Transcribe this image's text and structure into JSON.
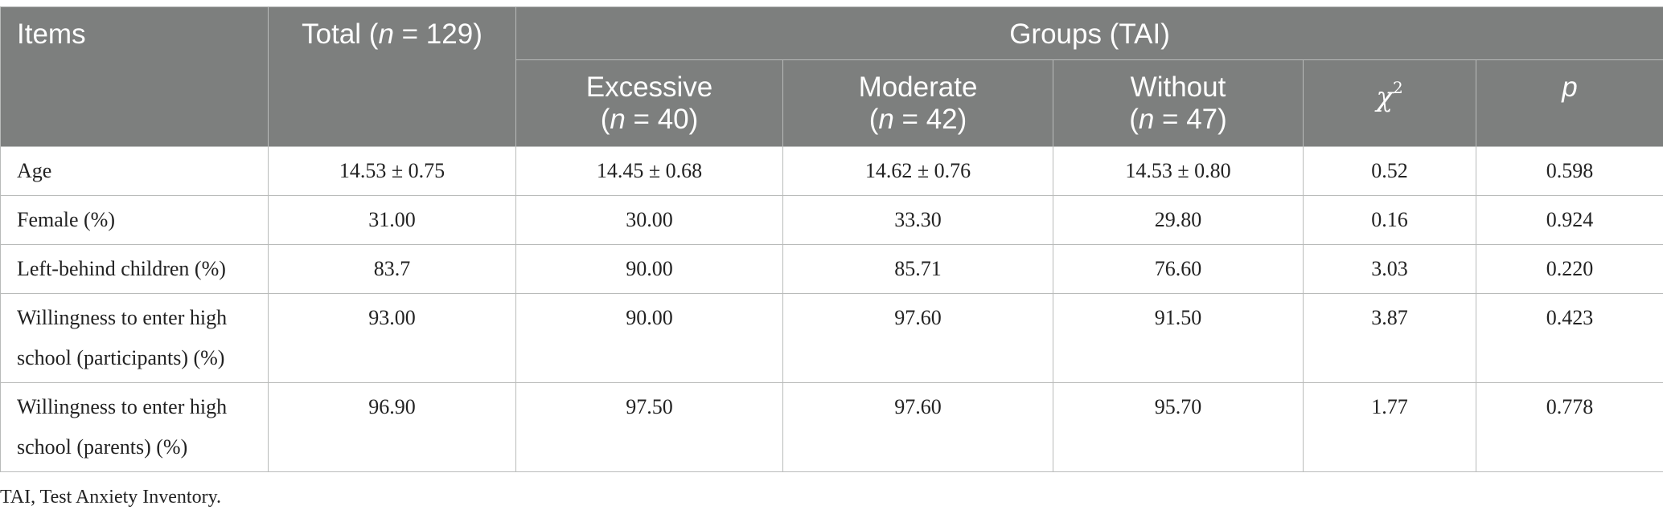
{
  "header": {
    "items": "Items",
    "total_prefix": "Total (",
    "total_n": "n",
    "total_suffix": " = 129)",
    "groups": "Groups (TAI)",
    "groups_cols": [
      {
        "line1": "Excessive",
        "n_open": "(",
        "n": "n",
        "n_rest": " = 40)"
      },
      {
        "line1": "Moderate",
        "n_open": "(",
        "n": "n",
        "n_rest": " = 42)"
      },
      {
        "line1": "Without",
        "n_open": "(",
        "n": "n",
        "n_rest": " = 47)"
      }
    ],
    "chi": "χ",
    "chi_sup": "2",
    "p": "p"
  },
  "rows": [
    {
      "label": "Age",
      "total": "14.53 ± 0.75",
      "excessive": "14.45 ± 0.68",
      "moderate": "14.62 ± 0.76",
      "without": "14.53 ± 0.80",
      "chi2": "0.52",
      "p": "0.598"
    },
    {
      "label": "Female (%)",
      "total": "31.00",
      "excessive": "30.00",
      "moderate": "33.30",
      "without": "29.80",
      "chi2": "0.16",
      "p": "0.924"
    },
    {
      "label": "Left-behind children (%)",
      "total": "83.7",
      "excessive": "90.00",
      "moderate": "85.71",
      "without": "76.60",
      "chi2": "3.03",
      "p": "0.220"
    },
    {
      "label_line1": "Willingness to enter high",
      "label_line2": "school (participants) (%)",
      "total": "93.00",
      "excessive": "90.00",
      "moderate": "97.60",
      "without": "91.50",
      "chi2": "3.87",
      "p": "0.423"
    },
    {
      "label_line1": "Willingness to enter high",
      "label_line2": "school (parents) (%)",
      "total": "96.90",
      "excessive": "97.50",
      "moderate": "97.60",
      "without": "95.70",
      "chi2": "1.77",
      "p": "0.778"
    }
  ],
  "footnote": "TAI, Test Anxiety Inventory.",
  "colors": {
    "header_bg": "#7d7f7e",
    "header_text": "#ffffff",
    "grid": "#b9bbba"
  }
}
